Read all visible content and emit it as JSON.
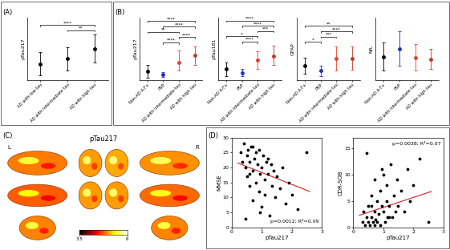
{
  "chart_data": [
    {
      "panel": "(A)",
      "type": "dot_error",
      "ylabel": "pTau217",
      "categories": [
        "AD with low tau",
        "AD with intermediate tau",
        "AD with high tau"
      ],
      "values": [
        0.82,
        0.98,
        1.3
      ],
      "lower": [
        0.45,
        0.6,
        0.85
      ],
      "upper": [
        1.2,
        1.35,
        1.75
      ],
      "colors": [
        "#000000",
        "#000000",
        "#000000"
      ],
      "ylim": [
        0.3,
        2.3
      ],
      "yticks": [],
      "tick_labels": "x",
      "significance": [
        {
          "from": "AD with intermediate tau",
          "to": "AD with high tau",
          "label": "**"
        },
        {
          "from": "AD with low tau",
          "to": "AD with high tau",
          "label": "****"
        }
      ]
    },
    {
      "panel": "(B)",
      "type": "dot_error",
      "ylabel": "pTau217",
      "categories": [
        "Non-AD A-T+",
        "PSP",
        "AD with intermediate tau",
        "AD with high tau"
      ],
      "values": [
        0.45,
        0.27,
        0.92,
        1.3
      ],
      "lower": [
        0.1,
        0.15,
        0.5,
        0.8
      ],
      "upper": [
        0.8,
        0.4,
        1.55,
        1.75
      ],
      "colors": [
        "#000000",
        "#1f2fbf",
        "#e8402a",
        "#c0392b"
      ],
      "ylim": [
        0,
        3.3
      ],
      "yticks": [],
      "tick_labels": "x",
      "significance": [
        {
          "from": "PSP",
          "to": "AD with intermediate tau",
          "label": "****"
        },
        {
          "from": "AD with intermediate tau",
          "to": "AD with high tau",
          "label": "****"
        },
        {
          "from": "Non-AD A-T+",
          "to": "AD with intermediate tau",
          "label": "**"
        },
        {
          "from": "PSP",
          "to": "AD with high tau",
          "label": "****"
        },
        {
          "from": "Non-AD A-T+",
          "to": "AD with high tau",
          "label": "****"
        }
      ]
    },
    {
      "type": "dot_error",
      "ylabel": "pTau181",
      "categories": [
        "Non-AD A-T+",
        "PSP",
        "AD with intermediate tau",
        "AD with high tau"
      ],
      "values": [
        12,
        8,
        22,
        27
      ],
      "lower": [
        4,
        4,
        12,
        17
      ],
      "upper": [
        20,
        12,
        32,
        38
      ],
      "colors": [
        "#000000",
        "#1f2fbf",
        "#e8402a",
        "#c0392b"
      ],
      "ylim": [
        0,
        70
      ],
      "yticks": [],
      "tick_labels": "x",
      "significance": [
        {
          "from": "PSP",
          "to": "AD with intermediate tau",
          "label": "****"
        },
        {
          "from": "Non-AD A-T+",
          "to": "AD with intermediate tau",
          "label": "*"
        },
        {
          "from": "AD with intermediate tau",
          "to": "AD with high tau",
          "label": "***"
        },
        {
          "from": "PSP",
          "to": "AD with high tau",
          "label": "****"
        },
        {
          "from": "Non-AD A-T+",
          "to": "AD with high tau",
          "label": "****"
        }
      ]
    },
    {
      "type": "dot_error",
      "ylabel": "GFAP",
      "categories": [
        "Non-AD A-T+",
        "PSP",
        "AD with intermediate tau",
        "AD with high tau"
      ],
      "values": [
        300,
        190,
        440,
        450
      ],
      "lower": [
        130,
        80,
        200,
        220
      ],
      "upper": [
        470,
        300,
        690,
        700
      ],
      "colors": [
        "#000000",
        "#1f2fbf",
        "#e8402a",
        "#c0392b"
      ],
      "ylim": [
        0,
        1300
      ],
      "yticks": [],
      "tick_labels": "x",
      "significance": [
        {
          "from": "Non-AD A-T+",
          "to": "PSP",
          "label": "*"
        },
        {
          "from": "PSP",
          "to": "AD with intermediate tau",
          "label": "***"
        },
        {
          "from": "PSP",
          "to": "AD with high tau",
          "label": "****"
        },
        {
          "from": "Non-AD A-T+",
          "to": "AD with high tau",
          "label": "**"
        }
      ]
    },
    {
      "type": "dot_error",
      "ylabel": "NfL",
      "categories": [
        "Non-AD A-T+",
        "PSP",
        "AD with intermediate tau",
        "AD with high tau"
      ],
      "values": [
        30,
        40,
        29,
        27
      ],
      "lower": [
        12,
        18,
        12,
        14
      ],
      "upper": [
        48,
        62,
        46,
        40
      ],
      "colors": [
        "#000000",
        "#1f2fbf",
        "#e8402a",
        "#c0392b"
      ],
      "ylim": [
        0,
        80
      ],
      "yticks": [],
      "tick_labels": "x",
      "significance": []
    },
    {
      "panel": "(C)",
      "type": "brain_map",
      "title": "pTau217",
      "hemispheres": [
        "L",
        "R"
      ],
      "colorbar": {
        "range": [
          3.5,
          6
        ],
        "ticks": [
          3.5,
          6
        ]
      }
    },
    {
      "panel": "(D)",
      "type": "scatter",
      "xlabel": "pTau217",
      "ylabel": "MMSE",
      "color": "#000000",
      "x": [
        0.3,
        0.35,
        0.4,
        0.45,
        0.5,
        0.5,
        0.55,
        0.6,
        0.6,
        0.65,
        0.7,
        0.7,
        0.75,
        0.8,
        0.8,
        0.85,
        0.9,
        0.9,
        0.95,
        1.0,
        1.0,
        1.05,
        1.1,
        1.1,
        1.15,
        1.2,
        1.25,
        1.3,
        1.35,
        1.4,
        1.45,
        1.5,
        1.6,
        1.7,
        1.8,
        1.9,
        2.0,
        2.2,
        2.5,
        0.45,
        0.7,
        0.95,
        1.2,
        0.6
      ],
      "y": [
        25,
        22,
        28,
        20,
        24,
        17,
        26,
        14,
        22,
        27,
        19,
        9,
        23,
        25,
        15,
        21,
        12,
        26,
        18,
        20,
        7,
        24,
        16,
        11,
        22,
        18,
        4,
        21,
        14,
        19,
        10,
        17,
        13,
        20,
        8,
        15,
        11,
        6,
        25,
        3,
        27,
        5,
        23,
        18
      ],
      "fit": {
        "x": [
          0.2,
          2.6
        ],
        "y": [
          21.5,
          12.0
        ],
        "color": "#e41a1c"
      },
      "annotation": "p=0.0012; R²=0.09",
      "xlim": [
        0,
        3
      ],
      "xticks": [
        0,
        1,
        2,
        3
      ],
      "ylim": [
        0,
        30
      ],
      "yticks": [
        0,
        5,
        10,
        15,
        20,
        25,
        30
      ]
    },
    {
      "type": "scatter",
      "xlabel": "pTau217",
      "ylabel": "CDR-SOB",
      "color": "#000000",
      "x": [
        0.3,
        0.35,
        0.4,
        0.45,
        0.5,
        0.5,
        0.55,
        0.6,
        0.6,
        0.65,
        0.7,
        0.7,
        0.75,
        0.8,
        0.8,
        0.85,
        0.9,
        0.9,
        0.95,
        1.0,
        1.0,
        1.05,
        1.1,
        1.1,
        1.15,
        1.2,
        1.25,
        1.3,
        1.35,
        1.4,
        1.45,
        1.5,
        1.6,
        1.7,
        1.8,
        1.9,
        2.0,
        2.2,
        2.5,
        0.45,
        0.7,
        0.95,
        1.2,
        0.6
      ],
      "y": [
        1,
        3,
        0.5,
        2,
        1,
        4,
        0.5,
        6,
        2,
        1,
        3,
        9,
        1.5,
        1,
        5,
        2.5,
        7,
        0.5,
        4,
        3,
        10,
        1,
        5,
        8,
        2,
        4,
        12,
        2,
        6,
        3,
        9,
        4,
        7,
        3,
        11,
        5,
        8,
        13,
        1,
        14,
        0.5,
        11,
        2,
        4
      ],
      "fit": {
        "x": [
          0.2,
          2.6
        ],
        "y": [
          2.3,
          6.8
        ],
        "color": "#e41a1c"
      },
      "annotation": "p=0.0038; R²=0.07",
      "xlim": [
        0,
        3
      ],
      "xticks": [
        0,
        1,
        2,
        3
      ],
      "ylim": [
        0,
        17
      ],
      "yticks": [
        0,
        5,
        10,
        15
      ]
    }
  ]
}
